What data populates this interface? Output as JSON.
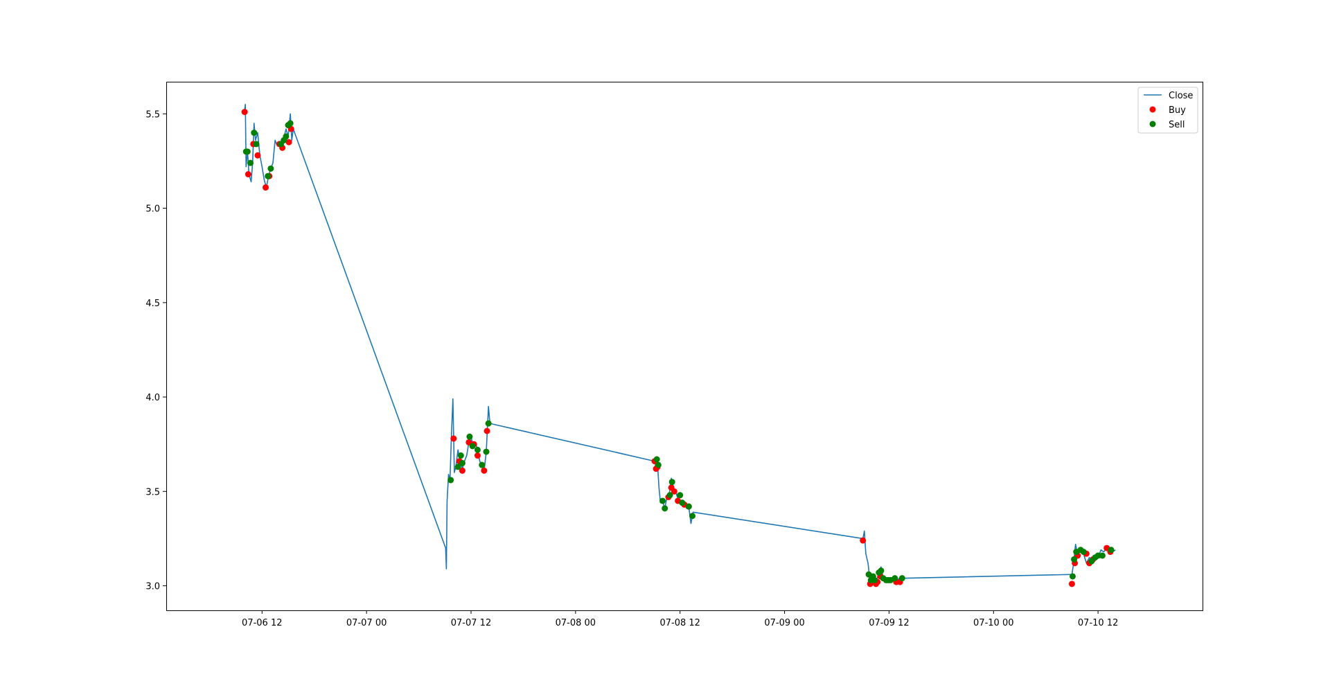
{
  "chart_data": {
    "type": "line",
    "title": "",
    "xlabel": "",
    "ylabel": "",
    "xlim": [
      "2023-07-06 01:00",
      "2023-07-11 00:00"
    ],
    "ylim": [
      2.87,
      5.67
    ],
    "x_ticks": [
      "07-06 12",
      "07-07 00",
      "07-07 12",
      "07-08 00",
      "07-08 12",
      "07-09 00",
      "07-09 12",
      "07-10 00",
      "07-10 12"
    ],
    "y_ticks": [
      "3.0",
      "3.5",
      "4.0",
      "4.5",
      "5.0",
      "5.5"
    ],
    "legend": {
      "position": "top-right",
      "entries": [
        "Close",
        "Buy",
        "Sell"
      ]
    },
    "grid": false,
    "colors": {
      "Close": "#1f77b4",
      "Buy": "#ff0000",
      "Sell": "#008000"
    },
    "series": [
      {
        "name": "Close",
        "type": "line",
        "points": [
          [
            "2023-07-06 10:00",
            5.52
          ],
          [
            "2023-07-06 10:05",
            5.55
          ],
          [
            "2023-07-06 10:10",
            5.22
          ],
          [
            "2023-07-06 10:20",
            5.3
          ],
          [
            "2023-07-06 10:30",
            5.18
          ],
          [
            "2023-07-06 10:45",
            5.14
          ],
          [
            "2023-07-06 10:55",
            5.24
          ],
          [
            "2023-07-06 11:05",
            5.45
          ],
          [
            "2023-07-06 11:15",
            5.36
          ],
          [
            "2023-07-06 11:30",
            5.4
          ],
          [
            "2023-07-06 11:45",
            5.28
          ],
          [
            "2023-07-06 12:00",
            5.22
          ],
          [
            "2023-07-06 12:15",
            5.15
          ],
          [
            "2023-07-06 12:30",
            5.11
          ],
          [
            "2023-07-06 12:45",
            5.17
          ],
          [
            "2023-07-06 13:00",
            5.21
          ],
          [
            "2023-07-06 13:15",
            5.24
          ],
          [
            "2023-07-06 13:30",
            5.36
          ],
          [
            "2023-07-06 13:45",
            5.33
          ],
          [
            "2023-07-06 14:00",
            5.35
          ],
          [
            "2023-07-06 14:15",
            5.32
          ],
          [
            "2023-07-06 14:30",
            5.37
          ],
          [
            "2023-07-06 14:45",
            5.42
          ],
          [
            "2023-07-06 15:00",
            5.38
          ],
          [
            "2023-07-06 15:15",
            5.5
          ],
          [
            "2023-07-06 15:25",
            5.36
          ],
          [
            "2023-07-06 15:35",
            5.42
          ],
          [
            "2023-07-07 09:05",
            3.2
          ],
          [
            "2023-07-07 09:10",
            3.09
          ],
          [
            "2023-07-07 09:15",
            3.45
          ],
          [
            "2023-07-07 09:25",
            3.59
          ],
          [
            "2023-07-07 09:35",
            3.56
          ],
          [
            "2023-07-07 09:45",
            3.8
          ],
          [
            "2023-07-07 09:55",
            3.99
          ],
          [
            "2023-07-07 10:05",
            3.6
          ],
          [
            "2023-07-07 10:15",
            3.63
          ],
          [
            "2023-07-07 10:30",
            3.72
          ],
          [
            "2023-07-07 10:45",
            3.66
          ],
          [
            "2023-07-07 11:00",
            3.62
          ],
          [
            "2023-07-07 11:15",
            3.66
          ],
          [
            "2023-07-07 11:30",
            3.69
          ],
          [
            "2023-07-07 11:45",
            3.76
          ],
          [
            "2023-07-07 12:00",
            3.79
          ],
          [
            "2023-07-07 12:15",
            3.74
          ],
          [
            "2023-07-07 12:30",
            3.76
          ],
          [
            "2023-07-07 12:45",
            3.72
          ],
          [
            "2023-07-07 13:00",
            3.66
          ],
          [
            "2023-07-07 13:15",
            3.64
          ],
          [
            "2023-07-07 13:30",
            3.61
          ],
          [
            "2023-07-07 13:45",
            3.71
          ],
          [
            "2023-07-07 14:00",
            3.95
          ],
          [
            "2023-07-07 14:10",
            3.86
          ],
          [
            "2023-07-08 09:05",
            3.66
          ],
          [
            "2023-07-08 09:15",
            3.63
          ],
          [
            "2023-07-08 09:25",
            3.64
          ],
          [
            "2023-07-08 09:35",
            3.52
          ],
          [
            "2023-07-08 09:45",
            3.44
          ],
          [
            "2023-07-08 10:00",
            3.45
          ],
          [
            "2023-07-08 10:15",
            3.41
          ],
          [
            "2023-07-08 10:30",
            3.47
          ],
          [
            "2023-07-08 10:45",
            3.48
          ],
          [
            "2023-07-08 11:00",
            3.57
          ],
          [
            "2023-07-08 11:15",
            3.52
          ],
          [
            "2023-07-08 11:30",
            3.5
          ],
          [
            "2023-07-08 11:45",
            3.46
          ],
          [
            "2023-07-08 12:00",
            3.44
          ],
          [
            "2023-07-08 12:15",
            3.43
          ],
          [
            "2023-07-08 12:30",
            3.44
          ],
          [
            "2023-07-08 12:45",
            3.41
          ],
          [
            "2023-07-08 13:00",
            3.42
          ],
          [
            "2023-07-08 13:15",
            3.33
          ],
          [
            "2023-07-08 13:30",
            3.39
          ],
          [
            "2023-07-09 09:00",
            3.25
          ],
          [
            "2023-07-09 09:10",
            3.29
          ],
          [
            "2023-07-09 09:20",
            3.17
          ],
          [
            "2023-07-09 09:35",
            3.12
          ],
          [
            "2023-07-09 09:50",
            3.02
          ],
          [
            "2023-07-09 10:05",
            3.06
          ],
          [
            "2023-07-09 10:20",
            3.01
          ],
          [
            "2023-07-09 10:35",
            3.03
          ],
          [
            "2023-07-09 10:50",
            3.07
          ],
          [
            "2023-07-09 11:05",
            3.1
          ],
          [
            "2023-07-09 11:20",
            3.04
          ],
          [
            "2023-07-09 11:35",
            3.02
          ],
          [
            "2023-07-09 11:50",
            3.04
          ],
          [
            "2023-07-09 12:10",
            3.02
          ],
          [
            "2023-07-09 12:30",
            3.05
          ],
          [
            "2023-07-09 12:50",
            3.02
          ],
          [
            "2023-07-09 13:10",
            3.04
          ],
          [
            "2023-07-09 13:30",
            3.04
          ],
          [
            "2023-07-10 09:00",
            3.06
          ],
          [
            "2023-07-10 09:10",
            3.11
          ],
          [
            "2023-07-10 09:25",
            3.22
          ],
          [
            "2023-07-10 09:40",
            3.16
          ],
          [
            "2023-07-10 10:00",
            3.2
          ],
          [
            "2023-07-10 10:20",
            3.17
          ],
          [
            "2023-07-10 10:40",
            3.12
          ],
          [
            "2023-07-10 11:00",
            3.15
          ],
          [
            "2023-07-10 11:20",
            3.13
          ],
          [
            "2023-07-10 11:40",
            3.16
          ],
          [
            "2023-07-10 12:00",
            3.15
          ],
          [
            "2023-07-10 12:20",
            3.19
          ],
          [
            "2023-07-10 12:40",
            3.18
          ],
          [
            "2023-07-10 13:00",
            3.2
          ],
          [
            "2023-07-10 13:20",
            3.19
          ],
          [
            "2023-07-10 13:40",
            3.18
          ],
          [
            "2023-07-10 14:00",
            3.19
          ]
        ]
      },
      {
        "name": "Buy",
        "type": "scatter",
        "points": [
          [
            "2023-07-06 10:00",
            5.51
          ],
          [
            "2023-07-06 10:25",
            5.18
          ],
          [
            "2023-07-06 11:00",
            5.34
          ],
          [
            "2023-07-06 11:30",
            5.28
          ],
          [
            "2023-07-06 12:25",
            5.11
          ],
          [
            "2023-07-06 12:50",
            5.17
          ],
          [
            "2023-07-06 14:00",
            5.34
          ],
          [
            "2023-07-06 14:20",
            5.32
          ],
          [
            "2023-07-06 15:05",
            5.35
          ],
          [
            "2023-07-06 15:20",
            5.42
          ],
          [
            "2023-07-07 10:00",
            3.78
          ],
          [
            "2023-07-07 10:40",
            3.66
          ],
          [
            "2023-07-07 11:00",
            3.61
          ],
          [
            "2023-07-07 11:45",
            3.76
          ],
          [
            "2023-07-07 12:20",
            3.75
          ],
          [
            "2023-07-07 12:45",
            3.69
          ],
          [
            "2023-07-07 13:30",
            3.61
          ],
          [
            "2023-07-07 13:50",
            3.82
          ],
          [
            "2023-07-08 09:05",
            3.66
          ],
          [
            "2023-07-08 09:15",
            3.62
          ],
          [
            "2023-07-08 09:25",
            3.63
          ],
          [
            "2023-07-08 10:40",
            3.47
          ],
          [
            "2023-07-08 11:00",
            3.52
          ],
          [
            "2023-07-08 11:20",
            3.5
          ],
          [
            "2023-07-08 11:45",
            3.45
          ],
          [
            "2023-07-08 12:30",
            3.43
          ],
          [
            "2023-07-08 13:00",
            3.42
          ],
          [
            "2023-07-09 09:00",
            3.24
          ],
          [
            "2023-07-09 09:50",
            3.01
          ],
          [
            "2023-07-09 10:30",
            3.01
          ],
          [
            "2023-07-09 10:40",
            3.02
          ],
          [
            "2023-07-09 11:00",
            3.05
          ],
          [
            "2023-07-09 12:50",
            3.02
          ],
          [
            "2023-07-09 13:15",
            3.02
          ],
          [
            "2023-07-10 09:00",
            3.01
          ],
          [
            "2023-07-10 09:20",
            3.12
          ],
          [
            "2023-07-10 09:40",
            3.16
          ],
          [
            "2023-07-10 10:40",
            3.17
          ],
          [
            "2023-07-10 11:00",
            3.12
          ],
          [
            "2023-07-10 11:25",
            3.14
          ],
          [
            "2023-07-10 13:00",
            3.2
          ],
          [
            "2023-07-10 13:25",
            3.18
          ]
        ]
      },
      {
        "name": "Sell",
        "type": "scatter",
        "points": [
          [
            "2023-07-06 10:10",
            5.3
          ],
          [
            "2023-07-06 10:20",
            5.3
          ],
          [
            "2023-07-06 10:40",
            5.24
          ],
          [
            "2023-07-06 11:05",
            5.4
          ],
          [
            "2023-07-06 11:20",
            5.34
          ],
          [
            "2023-07-06 12:40",
            5.17
          ],
          [
            "2023-07-06 13:00",
            5.21
          ],
          [
            "2023-07-06 14:10",
            5.34
          ],
          [
            "2023-07-06 14:30",
            5.36
          ],
          [
            "2023-07-06 14:45",
            5.38
          ],
          [
            "2023-07-06 15:00",
            5.44
          ],
          [
            "2023-07-06 15:15",
            5.45
          ],
          [
            "2023-07-07 09:40",
            3.56
          ],
          [
            "2023-07-07 10:30",
            3.63
          ],
          [
            "2023-07-07 10:50",
            3.69
          ],
          [
            "2023-07-07 11:00",
            3.65
          ],
          [
            "2023-07-07 11:50",
            3.79
          ],
          [
            "2023-07-07 12:10",
            3.74
          ],
          [
            "2023-07-07 12:45",
            3.72
          ],
          [
            "2023-07-07 13:15",
            3.64
          ],
          [
            "2023-07-07 13:45",
            3.71
          ],
          [
            "2023-07-07 14:00",
            3.86
          ],
          [
            "2023-07-08 09:20",
            3.67
          ],
          [
            "2023-07-08 09:30",
            3.64
          ],
          [
            "2023-07-08 10:00",
            3.45
          ],
          [
            "2023-07-08 10:15",
            3.41
          ],
          [
            "2023-07-08 10:50",
            3.48
          ],
          [
            "2023-07-08 11:05",
            3.55
          ],
          [
            "2023-07-08 12:00",
            3.48
          ],
          [
            "2023-07-08 12:15",
            3.44
          ],
          [
            "2023-07-08 13:00",
            3.42
          ],
          [
            "2023-07-08 13:25",
            3.37
          ],
          [
            "2023-07-09 09:40",
            3.06
          ],
          [
            "2023-07-09 09:55",
            3.03
          ],
          [
            "2023-07-09 10:10",
            3.05
          ],
          [
            "2023-07-09 10:20",
            3.03
          ],
          [
            "2023-07-09 10:50",
            3.07
          ],
          [
            "2023-07-09 11:05",
            3.08
          ],
          [
            "2023-07-09 11:20",
            3.04
          ],
          [
            "2023-07-09 11:40",
            3.03
          ],
          [
            "2023-07-09 11:55",
            3.03
          ],
          [
            "2023-07-09 12:10",
            3.03
          ],
          [
            "2023-07-09 12:40",
            3.04
          ],
          [
            "2023-07-09 13:30",
            3.04
          ],
          [
            "2023-07-10 09:05",
            3.05
          ],
          [
            "2023-07-10 09:15",
            3.14
          ],
          [
            "2023-07-10 09:30",
            3.18
          ],
          [
            "2023-07-10 10:00",
            3.19
          ],
          [
            "2023-07-10 10:20",
            3.18
          ],
          [
            "2023-07-10 11:15",
            3.13
          ],
          [
            "2023-07-10 11:40",
            3.15
          ],
          [
            "2023-07-10 12:00",
            3.16
          ],
          [
            "2023-07-10 12:30",
            3.16
          ],
          [
            "2023-07-10 13:30",
            3.19
          ]
        ]
      }
    ]
  }
}
